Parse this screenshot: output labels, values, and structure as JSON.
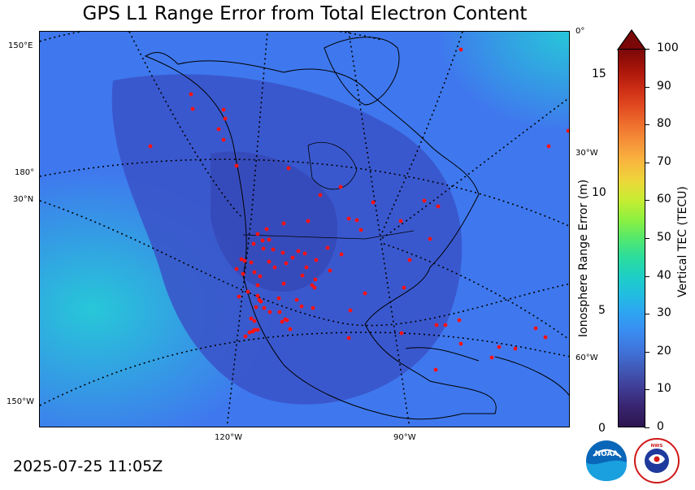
{
  "title": "GPS L1 Range Error from Total Electron Content",
  "timestamp": "2025-07-25 11:05Z",
  "map": {
    "lon_labels_bottom": [
      "120°W",
      "90°W"
    ],
    "left_labels": [
      "150°E",
      "180°",
      "30°N",
      "150°W"
    ],
    "right_labels": [
      "0°",
      "30°W",
      "60°W"
    ],
    "station_color": "#ff1010",
    "background_color": "#3f78ee",
    "low_region_color": "#3a52c8",
    "high_region_color": "#27c7d8"
  },
  "left_axis": {
    "label": "Ionosphere Range Error (m)",
    "ticks": [
      "0",
      "5",
      "10",
      "15"
    ]
  },
  "colorbar": {
    "label": "Vertical TEC (TECU)",
    "ticks": [
      "0",
      "10",
      "20",
      "30",
      "40",
      "50",
      "60",
      "70",
      "80",
      "90",
      "100"
    ],
    "extend": "max",
    "colors": [
      "#2d1550",
      "#38246e",
      "#3f3b93",
      "#4158b5",
      "#3f73d9",
      "#3b8bf1",
      "#2ea3f2",
      "#22bde0",
      "#1ecfc4",
      "#2cdd9c",
      "#55e86c",
      "#8ef03f",
      "#c6ed33",
      "#ecd83a",
      "#f8b83e",
      "#f6953a",
      "#ef702e",
      "#e14a20",
      "#c92b14",
      "#a61409",
      "#7a0808"
    ]
  },
  "logos": {
    "noaa": "NOAA",
    "nws": "NATIONAL WEATHER SERVICE"
  }
}
